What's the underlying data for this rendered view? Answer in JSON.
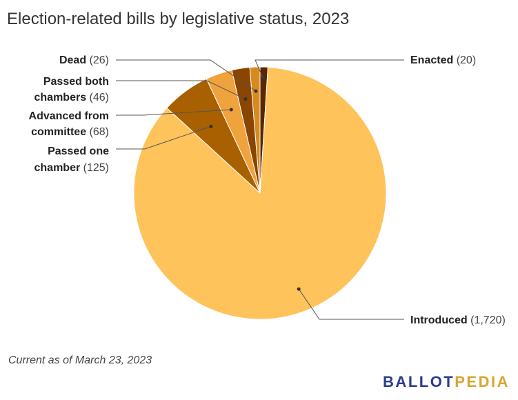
{
  "title": "Election-related bills by legislative status, 2023",
  "footnote": "Current as of March 23, 2023",
  "brand": {
    "part1": "BALLOT",
    "part2": "PEDIA",
    "color1": "#2a3c8c",
    "color2": "#d7a531"
  },
  "chart_data": {
    "type": "pie",
    "title": "Election-related bills by legislative status, 2023",
    "slices": [
      {
        "key": "enacted",
        "label_lines": [
          "Enacted"
        ],
        "count_text": "(20)",
        "value": 20,
        "color": "#5a2600"
      },
      {
        "key": "introduced",
        "label_lines": [
          "Introduced"
        ],
        "count_text": "(1,720)",
        "value": 1720,
        "color": "#ffc35c"
      },
      {
        "key": "passed-one",
        "label_lines": [
          "Passed one",
          "chamber"
        ],
        "count_text": "(125)",
        "value": 125,
        "color": "#a86000"
      },
      {
        "key": "advanced",
        "label_lines": [
          "Advanced from",
          "committee"
        ],
        "count_text": "(68)",
        "value": 68,
        "color": "#f0a33c"
      },
      {
        "key": "passed-both",
        "label_lines": [
          "Passed both",
          "chambers"
        ],
        "count_text": "(46)",
        "value": 46,
        "color": "#8a4500"
      },
      {
        "key": "dead",
        "label_lines": [
          "Dead"
        ],
        "count_text": "(26)",
        "value": 26,
        "color": "#d78a1e"
      }
    ]
  }
}
